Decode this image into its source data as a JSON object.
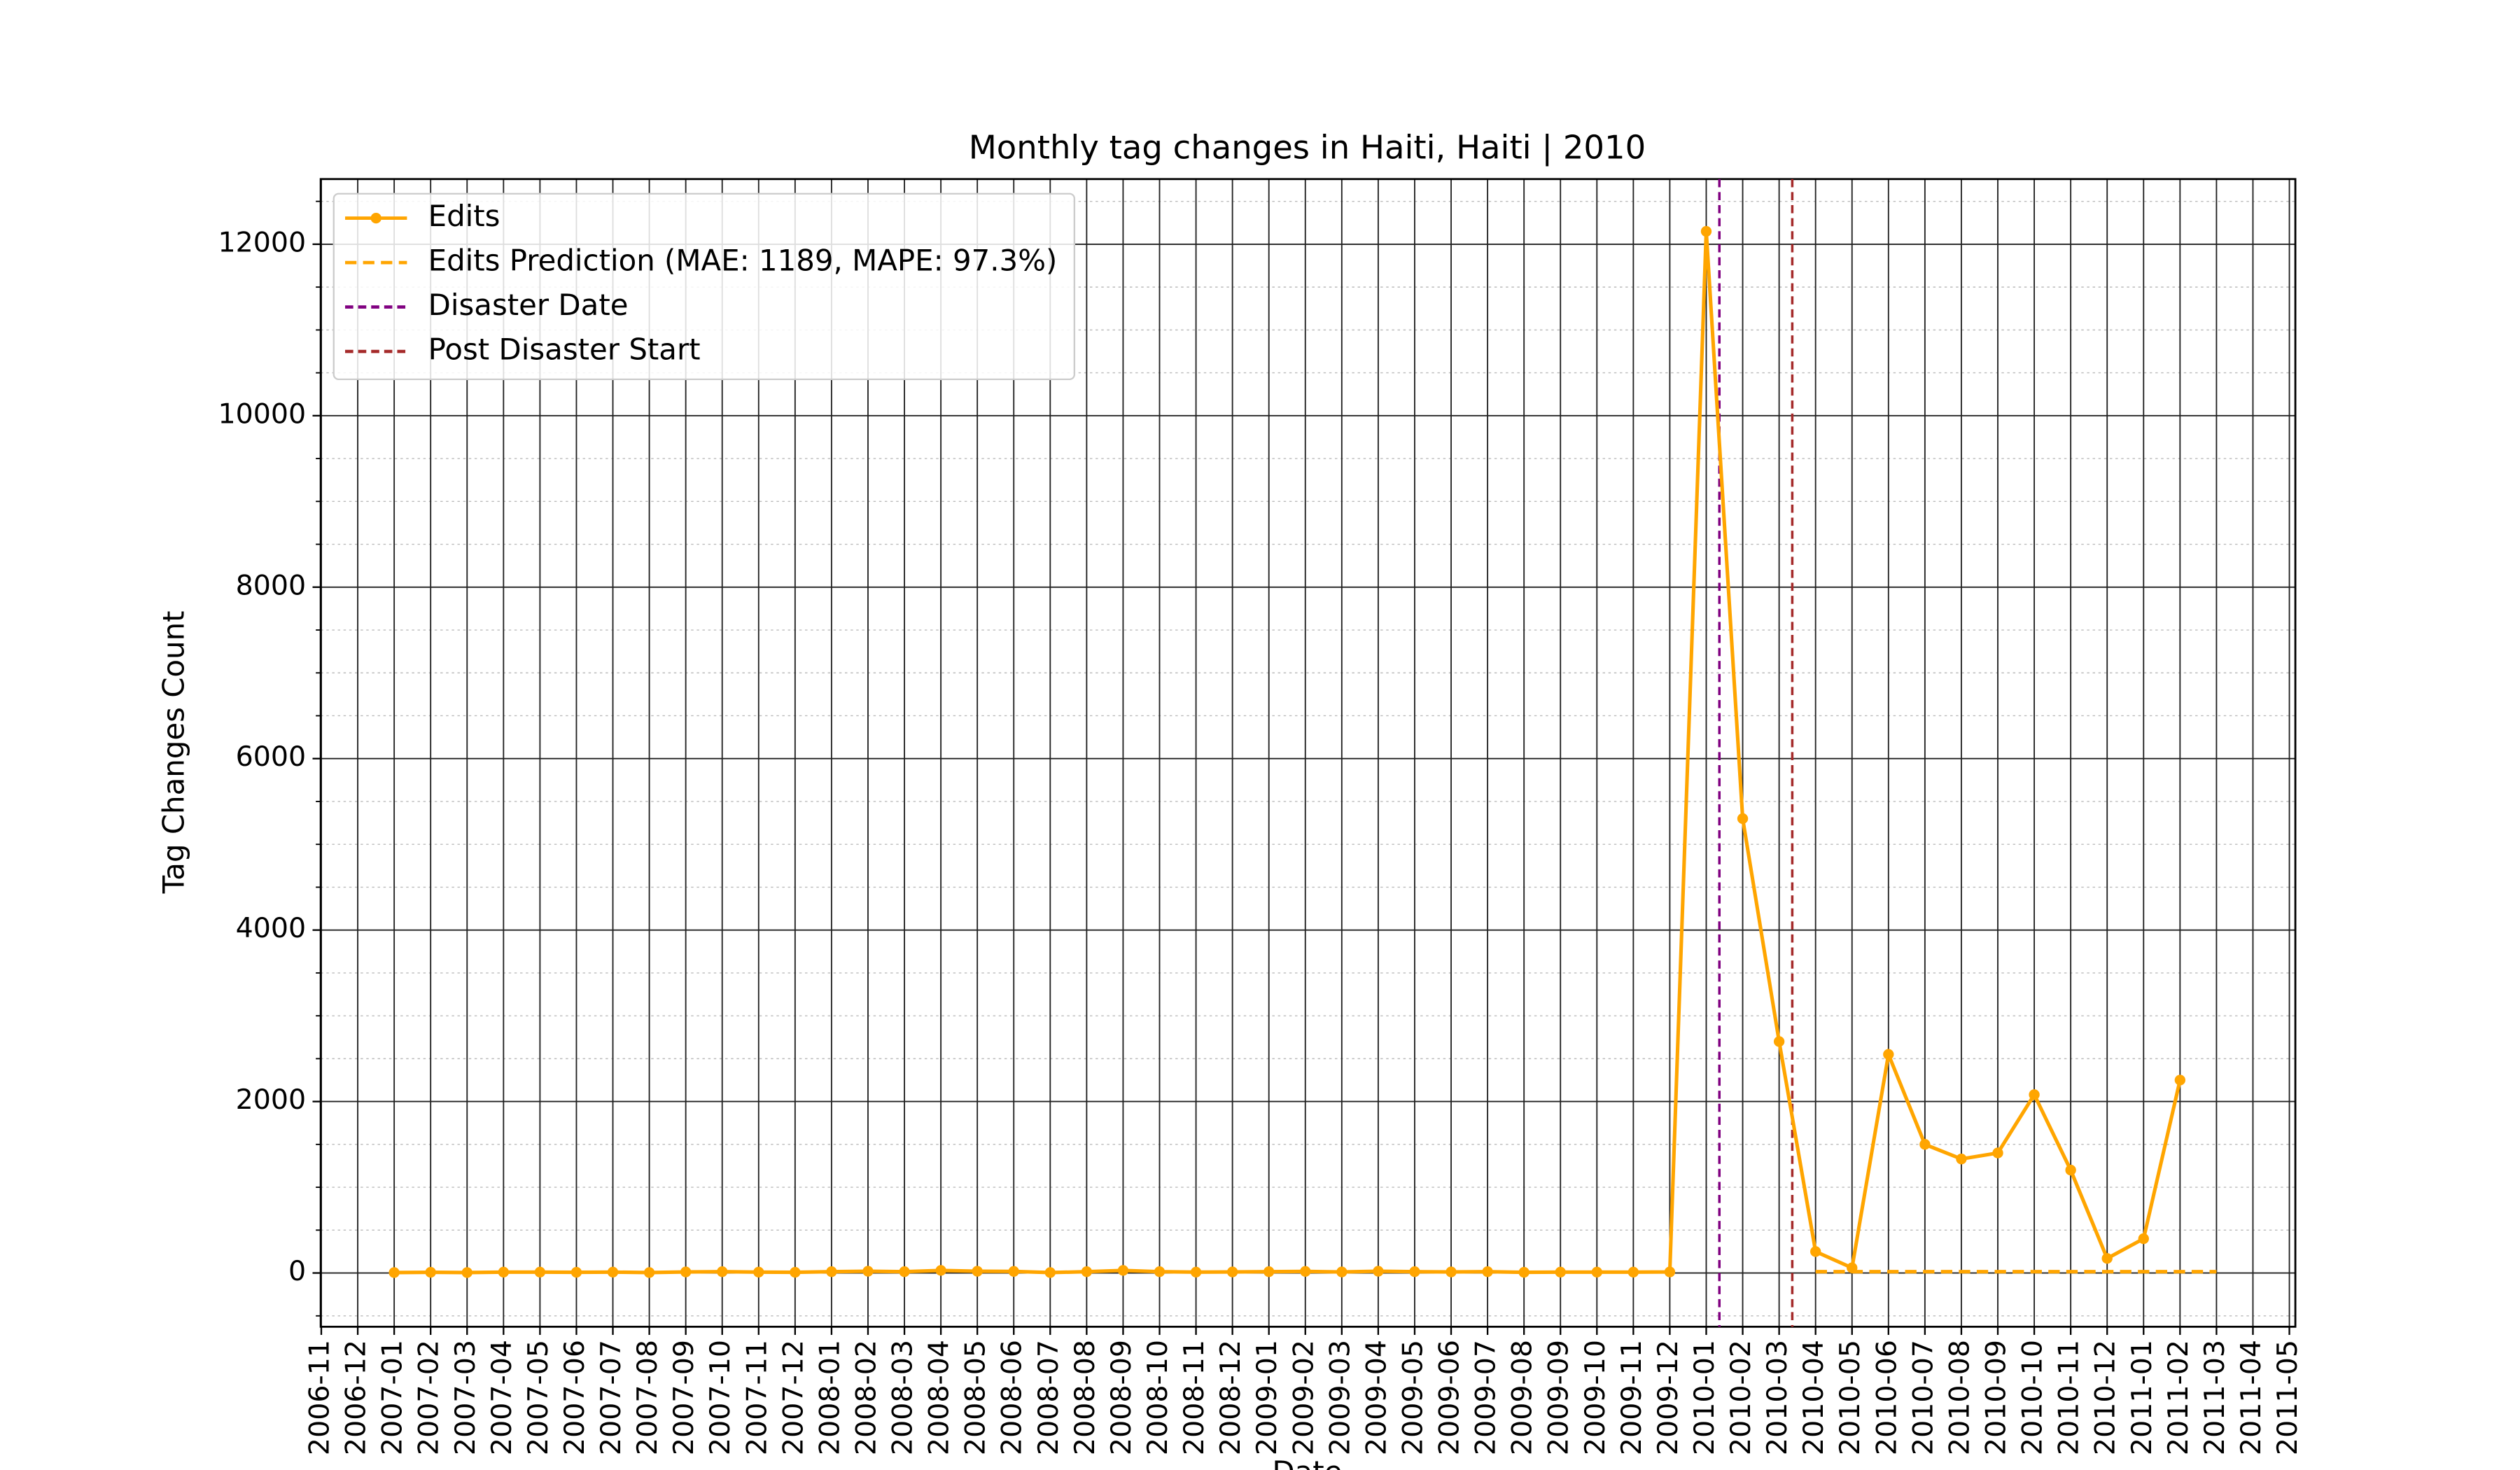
{
  "chart_data": {
    "type": "line",
    "title": "Monthly tag changes in Haiti, Haiti | 2010",
    "xlabel": "Date",
    "ylabel": "Tag Changes Count",
    "x": [
      "2007-01",
      "2007-02",
      "2007-03",
      "2007-04",
      "2007-05",
      "2007-06",
      "2007-07",
      "2007-08",
      "2007-09",
      "2007-10",
      "2007-11",
      "2007-12",
      "2008-01",
      "2008-02",
      "2008-03",
      "2008-04",
      "2008-05",
      "2008-06",
      "2008-07",
      "2008-08",
      "2008-09",
      "2008-10",
      "2008-11",
      "2008-12",
      "2009-01",
      "2009-02",
      "2009-03",
      "2009-04",
      "2009-05",
      "2009-06",
      "2009-07",
      "2009-08",
      "2009-09",
      "2009-10",
      "2009-11",
      "2009-12",
      "2010-01",
      "2010-02",
      "2010-03",
      "2010-04",
      "2010-05",
      "2010-06",
      "2010-07",
      "2010-08",
      "2010-09",
      "2010-10",
      "2010-11",
      "2010-12",
      "2011-01",
      "2011-02"
    ],
    "series": [
      {
        "name": "Edits",
        "color": "#ffa500",
        "style": "solid",
        "marker": true,
        "values": [
          5,
          8,
          5,
          10,
          10,
          8,
          10,
          5,
          12,
          15,
          10,
          8,
          15,
          20,
          15,
          30,
          20,
          18,
          5,
          15,
          30,
          15,
          10,
          12,
          15,
          18,
          12,
          20,
          15,
          12,
          15,
          8,
          10,
          10,
          10,
          12,
          12150,
          5300,
          2700,
          250,
          60,
          2550,
          1500,
          1330,
          1400,
          2080,
          1200,
          170,
          400,
          2250
        ]
      },
      {
        "name": "Edits Prediction (MAE: 1189, MAPE: 97.3%)",
        "color": "#ffa500",
        "style": "dashed",
        "marker": false,
        "x": [
          "2010-04",
          "2010-05",
          "2010-06",
          "2010-07",
          "2010-08",
          "2010-09",
          "2010-10",
          "2010-11",
          "2010-12",
          "2011-01",
          "2011-02",
          "2011-03"
        ],
        "values": [
          15,
          15,
          15,
          15,
          15,
          15,
          15,
          15,
          15,
          15,
          15,
          15
        ]
      }
    ],
    "vlines": [
      {
        "name": "Disaster Date",
        "color": "#800080",
        "x": "2010-01-12"
      },
      {
        "name": "Post Disaster Start",
        "color": "#a52a2a",
        "x": "2010-03-12"
      }
    ],
    "xlim": [
      "2006-10-31",
      "2011-05-06"
    ],
    "xticks": [
      "2006-11",
      "2006-12",
      "2007-01",
      "2007-02",
      "2007-03",
      "2007-04",
      "2007-05",
      "2007-06",
      "2007-07",
      "2007-08",
      "2007-09",
      "2007-10",
      "2007-11",
      "2007-12",
      "2008-01",
      "2008-02",
      "2008-03",
      "2008-04",
      "2008-05",
      "2008-06",
      "2008-07",
      "2008-08",
      "2008-09",
      "2008-10",
      "2008-11",
      "2008-12",
      "2009-01",
      "2009-02",
      "2009-03",
      "2009-04",
      "2009-05",
      "2009-06",
      "2009-07",
      "2009-08",
      "2009-09",
      "2009-10",
      "2009-11",
      "2009-12",
      "2010-01",
      "2010-02",
      "2010-03",
      "2010-04",
      "2010-05",
      "2010-06",
      "2010-07",
      "2010-08",
      "2010-09",
      "2010-10",
      "2010-11",
      "2010-12",
      "2011-01",
      "2011-02",
      "2011-03",
      "2011-04",
      "2011-05"
    ],
    "ylim": [
      -627,
      12760
    ],
    "yticks": [
      0,
      2000,
      4000,
      6000,
      8000,
      10000,
      12000
    ],
    "yminorticks": [
      -500,
      500,
      1000,
      1500,
      2500,
      3000,
      3500,
      4500,
      5000,
      5500,
      6500,
      7000,
      7500,
      8500,
      9000,
      9500,
      10500,
      11000,
      11500,
      12500
    ],
    "grid": true,
    "legend": "upper left"
  }
}
